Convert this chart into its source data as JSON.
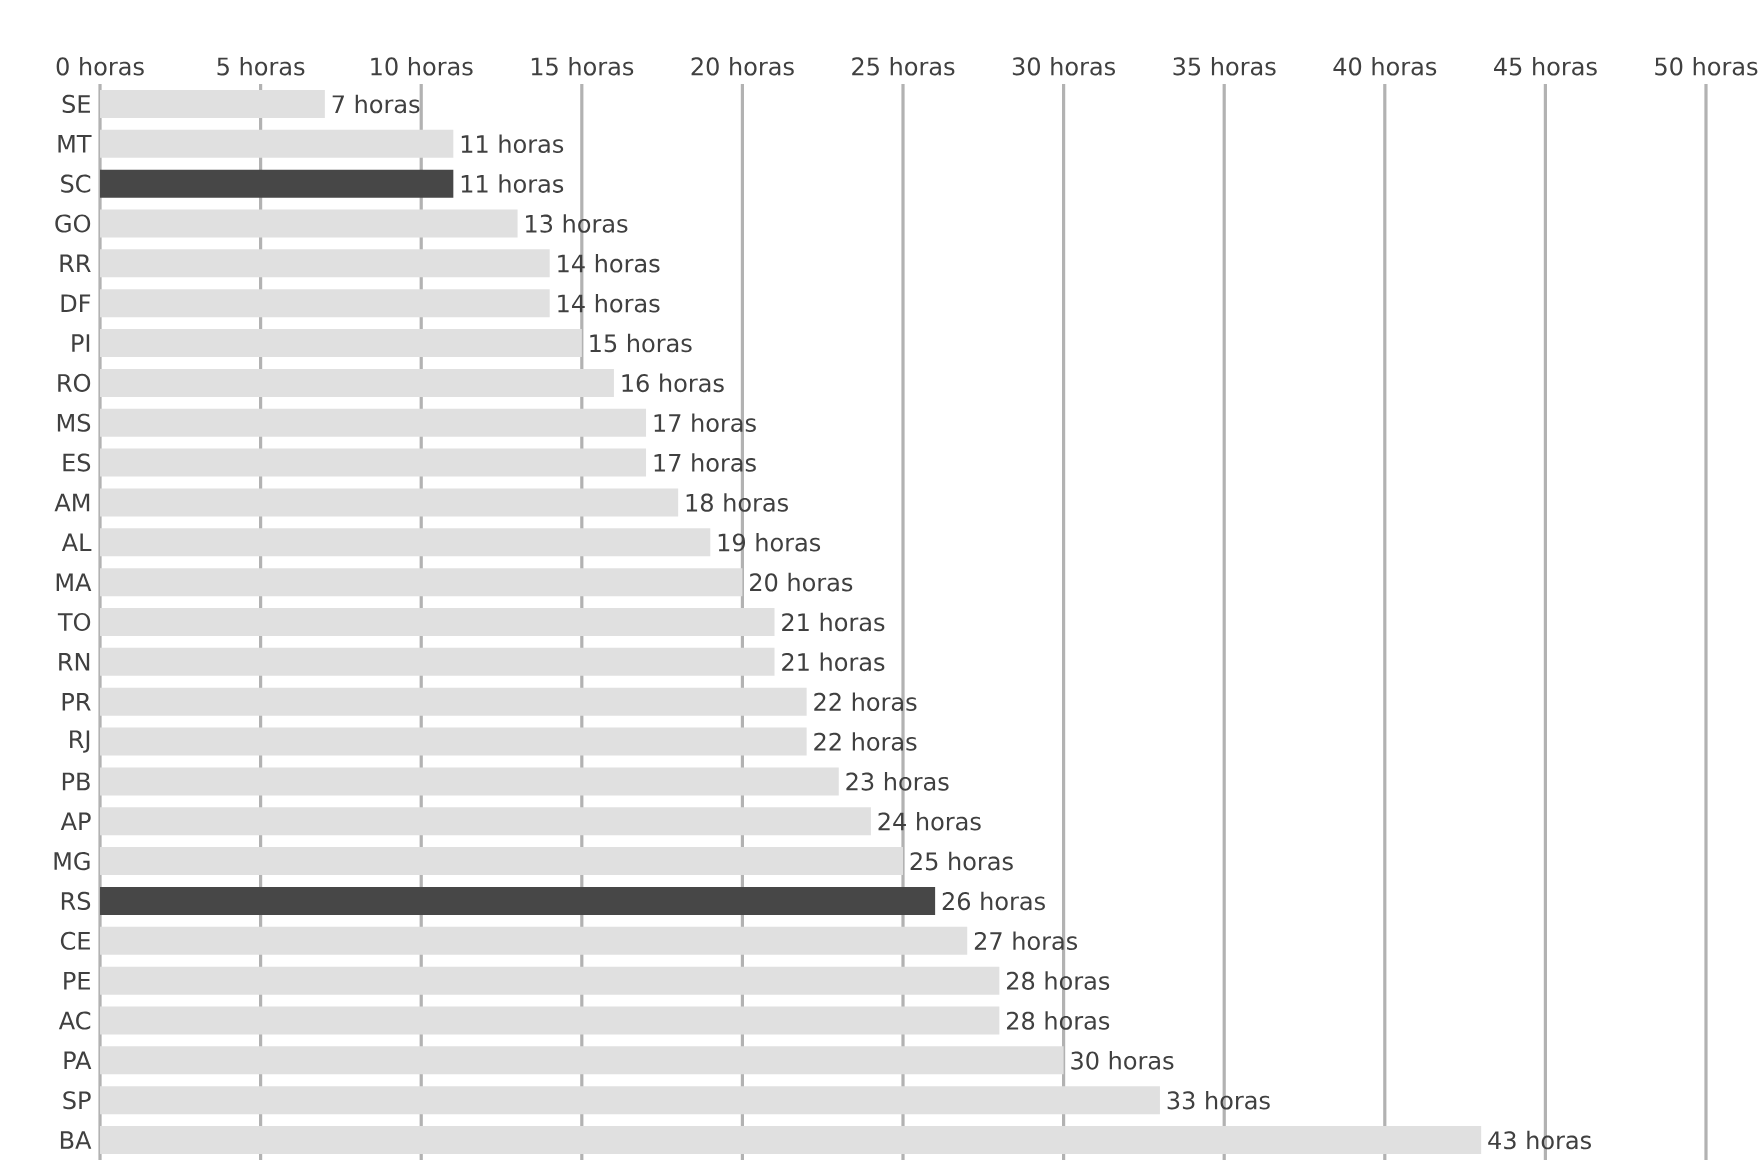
{
  "chart_data": {
    "type": "bar",
    "orientation": "horizontal",
    "categories": [
      "SE",
      "MT",
      "SC",
      "GO",
      "RR",
      "DF",
      "PI",
      "RO",
      "MS",
      "ES",
      "AM",
      "AL",
      "MA",
      "TO",
      "RN",
      "PR",
      "RJ",
      "PB",
      "AP",
      "MG",
      "RS",
      "CE",
      "PE",
      "AC",
      "PA",
      "SP",
      "BA"
    ],
    "values": [
      7,
      11,
      11,
      13,
      14,
      14,
      15,
      16,
      17,
      17,
      18,
      19,
      20,
      21,
      21,
      22,
      22,
      23,
      24,
      25,
      26,
      27,
      28,
      28,
      30,
      33,
      43
    ],
    "colors": [
      "#e0e0e0",
      "#e0e0e0",
      "#474747",
      "#e0e0e0",
      "#e0e0e0",
      "#e0e0e0",
      "#e0e0e0",
      "#e0e0e0",
      "#e0e0e0",
      "#e0e0e0",
      "#e0e0e0",
      "#e0e0e0",
      "#e0e0e0",
      "#e0e0e0",
      "#e0e0e0",
      "#e0e0e0",
      "#e0e0e0",
      "#e0e0e0",
      "#e0e0e0",
      "#e0e0e0",
      "#474747",
      "#e0e0e0",
      "#e0e0e0",
      "#e0e0e0",
      "#e0e0e0",
      "#e0e0e0",
      "#e0e0e0"
    ],
    "value_labels": [
      "7 horas",
      "11 horas",
      "11 horas",
      "13 horas",
      "14 horas",
      "14 horas",
      "15 horas",
      "16 horas",
      "17 horas",
      "17 horas",
      "18 horas",
      "19 horas",
      "20 horas",
      "21 horas",
      "21 horas",
      "22 horas",
      "22 horas",
      "23 horas",
      "24 horas",
      "25 horas",
      "26 horas",
      "27 horas",
      "28 horas",
      "28 horas",
      "30 horas",
      "33 horas",
      "43 horas"
    ],
    "xlim": [
      0,
      50
    ],
    "xticks": [
      {
        "value": 0,
        "label": "0 horas"
      },
      {
        "value": 5,
        "label": "5 horas"
      },
      {
        "value": 10,
        "label": "10 horas"
      },
      {
        "value": 15,
        "label": "15 horas"
      },
      {
        "value": 20,
        "label": "20 horas"
      },
      {
        "value": 25,
        "label": "25 horas"
      },
      {
        "value": 30,
        "label": "30 horas"
      },
      {
        "value": 35,
        "label": "35 horas"
      },
      {
        "value": 40,
        "label": "40 horas"
      },
      {
        "value": 45,
        "label": "45 horas"
      },
      {
        "value": 50,
        "label": "50 horas"
      }
    ],
    "grid": "x"
  }
}
